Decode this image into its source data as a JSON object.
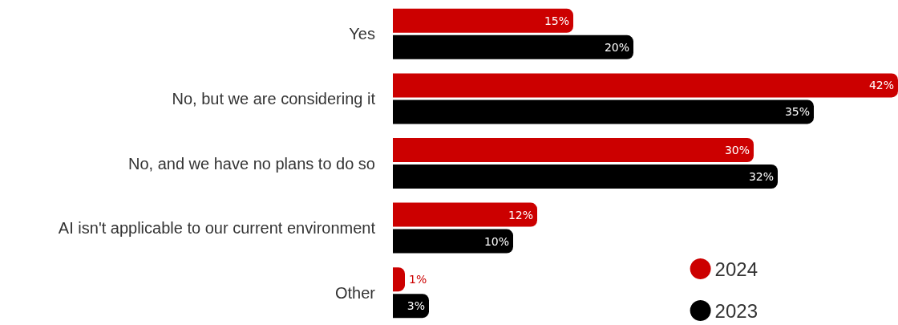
{
  "chart_data": {
    "type": "bar",
    "orientation": "horizontal",
    "categories": [
      "Yes",
      "No, but we are considering it",
      "No, and we have no plans to do so",
      "AI isn't applicable to our current environment",
      "Other"
    ],
    "series": [
      {
        "name": "2024",
        "color": "#cc0000",
        "values": [
          15,
          42,
          30,
          12,
          1
        ],
        "value_labels": [
          "15%",
          "42%",
          "30%",
          "12%",
          "1%"
        ]
      },
      {
        "name": "2023",
        "color": "#000000",
        "values": [
          20,
          35,
          32,
          10,
          3
        ],
        "value_labels": [
          "20%",
          "35%",
          "32%",
          "10%",
          "3%"
        ]
      }
    ],
    "xlim": [
      0,
      42
    ],
    "grid": false,
    "legend": "bottom right"
  }
}
